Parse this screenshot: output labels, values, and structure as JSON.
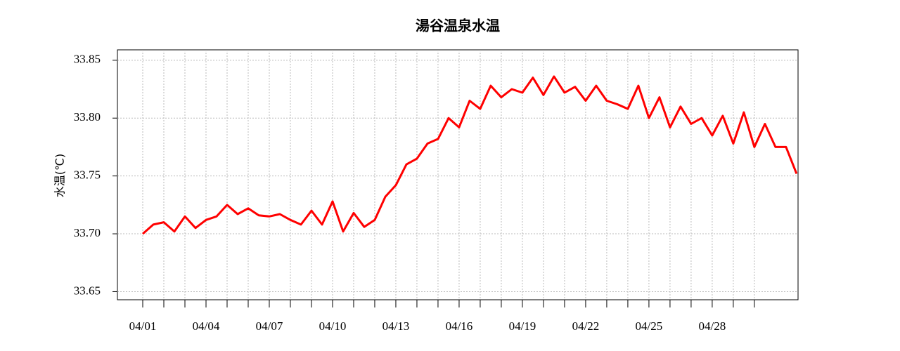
{
  "chart_data": {
    "type": "line",
    "title": "湯谷温泉水温",
    "y_label": "水温(℃)",
    "x": [
      1,
      1.5,
      2,
      2.5,
      3,
      3.5,
      4,
      4.5,
      5,
      5.5,
      6,
      6.5,
      7,
      7.5,
      8,
      8.5,
      9,
      9.5,
      10,
      10.5,
      11,
      11.5,
      12,
      12.5,
      13,
      13.5,
      14,
      14.5,
      15,
      15.5,
      16,
      16.5,
      17,
      17.5,
      18,
      18.5,
      19,
      19.5,
      20,
      20.5,
      21,
      21.5,
      22,
      22.5,
      23,
      23.5,
      24,
      24.5,
      25,
      25.5,
      26,
      26.5,
      27,
      27.5,
      28,
      28.5,
      29,
      29.5,
      30,
      30.5,
      31,
      31.5,
      32
    ],
    "series": [
      {
        "color": "#ff0000",
        "values": [
          33.7,
          33.708,
          33.71,
          33.702,
          33.715,
          33.705,
          33.712,
          33.715,
          33.725,
          33.717,
          33.722,
          33.716,
          33.715,
          33.717,
          33.712,
          33.708,
          33.72,
          33.708,
          33.728,
          33.702,
          33.718,
          33.706,
          33.712,
          33.732,
          33.742,
          33.76,
          33.765,
          33.778,
          33.782,
          33.8,
          33.792,
          33.815,
          33.808,
          33.828,
          33.818,
          33.825,
          33.822,
          33.835,
          33.82,
          33.836,
          33.822,
          33.827,
          33.815,
          33.828,
          33.815,
          33.812,
          33.808,
          33.828,
          33.8,
          33.818,
          33.792,
          33.81,
          33.795,
          33.8,
          33.785,
          33.802,
          33.778,
          33.805,
          33.775,
          33.795,
          33.775,
          33.775,
          33.752
        ]
      }
    ],
    "xlim": [
      -0.2,
      32.07
    ],
    "xticks": [
      {
        "value": 1,
        "label": "04/01"
      },
      {
        "value": 4,
        "label": "04/04"
      },
      {
        "value": 7,
        "label": "04/07"
      },
      {
        "value": 10,
        "label": "04/10"
      },
      {
        "value": 13,
        "label": "04/13"
      },
      {
        "value": 16,
        "label": "04/16"
      },
      {
        "value": 19,
        "label": "04/19"
      },
      {
        "value": 22,
        "label": "04/22"
      },
      {
        "value": 25,
        "label": "04/25"
      },
      {
        "value": 28,
        "label": "04/28"
      }
    ],
    "xminor_ticks": [
      2,
      3,
      5,
      6,
      8,
      9,
      11,
      12,
      14,
      15,
      17,
      18,
      20,
      21,
      23,
      24,
      26,
      27,
      29,
      30
    ],
    "ylim": [
      33.643,
      33.859
    ],
    "yticks": [
      33.65,
      {
        "value": 33.7,
        "label": "33.70"
      },
      33.75,
      {
        "value": 33.8,
        "label": "33.80"
      },
      33.85
    ],
    "grid": true
  }
}
